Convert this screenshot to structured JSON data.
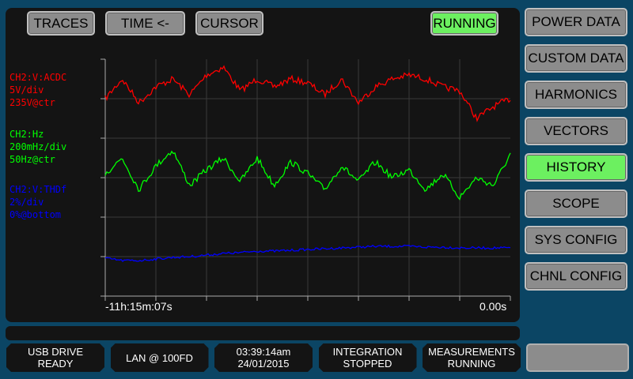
{
  "top_buttons": [
    {
      "label": "TRACES"
    },
    {
      "label": "TIME <-"
    },
    {
      "label": "CURSOR"
    }
  ],
  "run_status": {
    "label": "RUNNING",
    "color": "#6cf060"
  },
  "side_menu": [
    {
      "label": "POWER DATA"
    },
    {
      "label": "CUSTOM DATA"
    },
    {
      "label": "HARMONICS"
    },
    {
      "label": "VECTORS"
    },
    {
      "label": "HISTORY",
      "active": true
    },
    {
      "label": "SCOPE"
    },
    {
      "label": "SYS CONFIG"
    },
    {
      "label": "CHNL CONFIG"
    }
  ],
  "channels": [
    {
      "name": "CH2:V:ACDC",
      "scale": "5V/div",
      "ref": "235V@ctr",
      "color": "#ff0000"
    },
    {
      "name": "CH2:Hz",
      "scale": "200mHz/div",
      "ref": "50Hz@ctr",
      "color": "#00ff00"
    },
    {
      "name": "CH2:V:THDf",
      "scale": "2%/div",
      "ref": "0%@bottom",
      "color": "#0000ff"
    }
  ],
  "time_axis": {
    "start": "-11h:15m:07s",
    "end": "0.00s"
  },
  "status": [
    {
      "line1": "USB DRIVE",
      "line2": "READY"
    },
    {
      "line1": "LAN @ 100FD",
      "line2": ""
    },
    {
      "line1": "03:39:14am",
      "line2": "24/01/2015"
    },
    {
      "line1": "INTEGRATION",
      "line2": "STOPPED"
    },
    {
      "line1": "MEASUREMENTS",
      "line2": "RUNNING"
    }
  ],
  "chart_data": {
    "type": "line",
    "grid": true,
    "x_divisions": 8,
    "y_divisions": 6,
    "series": [
      {
        "name": "CH2:V:ACDC",
        "unit": "V",
        "center": 235,
        "per_div": 5,
        "color": "#ff0000",
        "values": [
          245,
          247.5,
          244.5,
          246.5,
          247.5,
          245.5,
          248,
          249,
          246,
          247.5,
          246.5,
          247.5,
          247,
          245.5,
          247.5,
          244.5,
          246.5,
          247.5,
          248,
          247.5,
          246.5,
          246,
          242.5,
          244,
          245
        ]
      },
      {
        "name": "CH2:Hz",
        "unit": "Hz",
        "center": 50,
        "per_div": 0.2,
        "color": "#00ff00",
        "values": [
          50.02,
          50.1,
          49.94,
          50.06,
          50.14,
          49.96,
          50.04,
          50.1,
          49.98,
          50.1,
          49.96,
          50.08,
          50.02,
          49.94,
          50.06,
          49.98,
          50.08,
          50.0,
          50.04,
          49.94,
          50.02,
          49.9,
          50.0,
          49.96,
          50.12
        ]
      },
      {
        "name": "CH2:V:THDf",
        "unit": "%",
        "bottom": 0,
        "per_div": 2,
        "color": "#0000ff",
        "values": [
          1.92,
          1.8,
          1.8,
          1.88,
          1.96,
          2.0,
          2.08,
          2.16,
          2.2,
          2.28,
          2.28,
          2.32,
          2.36,
          2.4,
          2.44,
          2.48,
          2.52,
          2.52,
          2.52,
          2.48,
          2.48,
          2.44,
          2.44,
          2.44,
          2.44
        ]
      }
    ]
  }
}
